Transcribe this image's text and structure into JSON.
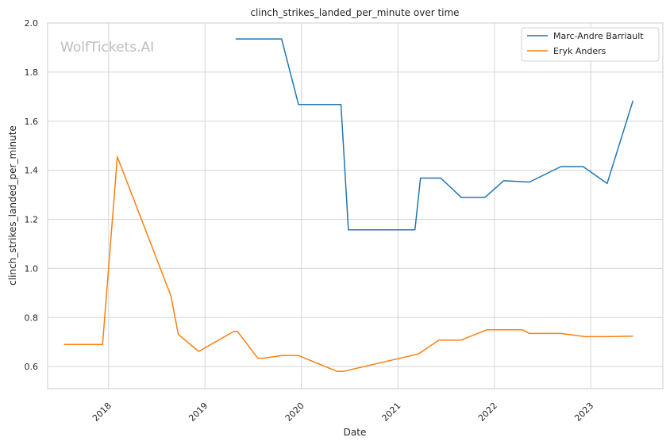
{
  "watermark": "WolfTickets.AI",
  "chart_data": {
    "type": "line",
    "title": "clinch_strikes_landed_per_minute over time",
    "xlabel": "Date",
    "ylabel": "clinch_strikes_landed_per_minute",
    "xlim": [
      "2017-05-15",
      "2023-10-01"
    ],
    "ylim": [
      0.51,
      2.0
    ],
    "x_ticks": [
      "2018",
      "2019",
      "2020",
      "2021",
      "2022",
      "2023"
    ],
    "y_ticks": [
      "0.6",
      "0.8",
      "1.0",
      "1.2",
      "1.4",
      "1.6",
      "1.8",
      "2.0"
    ],
    "grid": true,
    "legend_position": "top-right",
    "series": [
      {
        "name": "Marc-Andre Barriault",
        "color": "#1f77b4",
        "points": [
          [
            "2019-04-27",
            1.935
          ],
          [
            "2019-10-18",
            1.935
          ],
          [
            "2019-12-21",
            1.668
          ],
          [
            "2020-05-30",
            1.668
          ],
          [
            "2020-06-27",
            1.157
          ],
          [
            "2021-03-06",
            1.157
          ],
          [
            "2021-03-27",
            1.368
          ],
          [
            "2021-06-12",
            1.368
          ],
          [
            "2021-08-28",
            1.29
          ],
          [
            "2021-11-27",
            1.29
          ],
          [
            "2022-02-05",
            1.357
          ],
          [
            "2022-05-14",
            1.352
          ],
          [
            "2022-09-10",
            1.415
          ],
          [
            "2022-12-03",
            1.415
          ],
          [
            "2023-03-04",
            1.346
          ],
          [
            "2023-06-10",
            1.684
          ]
        ]
      },
      {
        "name": "Eryk Anders",
        "color": "#ff7f0e",
        "points": [
          [
            "2017-07-16",
            0.69
          ],
          [
            "2017-12-09",
            0.69
          ],
          [
            "2018-02-03",
            1.455
          ],
          [
            "2018-08-25",
            0.888
          ],
          [
            "2018-09-22",
            0.731
          ],
          [
            "2018-12-08",
            0.662
          ],
          [
            "2019-04-20",
            0.743
          ],
          [
            "2019-05-04",
            0.743
          ],
          [
            "2019-07-20",
            0.634
          ],
          [
            "2019-08-10",
            0.634
          ],
          [
            "2019-10-18",
            0.645
          ],
          [
            "2019-12-21",
            0.645
          ],
          [
            "2020-05-16",
            0.58
          ],
          [
            "2020-06-06",
            0.58
          ],
          [
            "2021-03-20",
            0.652
          ],
          [
            "2021-06-05",
            0.708
          ],
          [
            "2021-08-28",
            0.708
          ],
          [
            "2021-12-04",
            0.75
          ],
          [
            "2022-04-16",
            0.75
          ],
          [
            "2022-05-14",
            0.735
          ],
          [
            "2022-09-10",
            0.735
          ],
          [
            "2022-12-10",
            0.722
          ],
          [
            "2023-03-04",
            0.722
          ],
          [
            "2023-06-10",
            0.724
          ]
        ]
      }
    ]
  }
}
